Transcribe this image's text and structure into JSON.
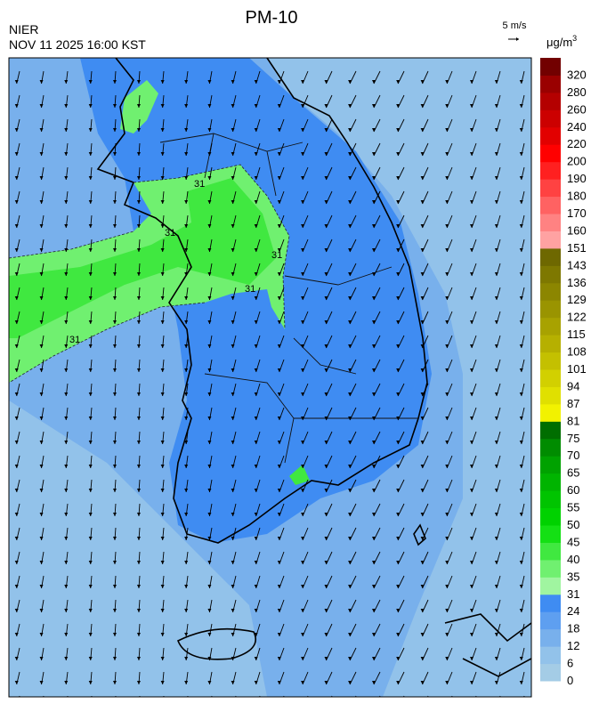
{
  "header": {
    "title": "PM-10",
    "source": "NIER",
    "timestamp": "NOV 11 2025 16:00 KST",
    "wind_scale": "5 m/s"
  },
  "legend": {
    "unit": "μg/m",
    "unit_sup": "3",
    "bins": [
      {
        "label": "0",
        "color": "#a4cce6"
      },
      {
        "label": "6",
        "color": "#92c2ea"
      },
      {
        "label": "12",
        "color": "#78b0ec"
      },
      {
        "label": "18",
        "color": "#5e9ff0"
      },
      {
        "label": "24",
        "color": "#3f8cf2"
      },
      {
        "label": "31",
        "color": "#a0f5a0"
      },
      {
        "label": "35",
        "color": "#70f070"
      },
      {
        "label": "40",
        "color": "#40e840"
      },
      {
        "label": "45",
        "color": "#14e014"
      },
      {
        "label": "50",
        "color": "#00d200"
      },
      {
        "label": "55",
        "color": "#00c400"
      },
      {
        "label": "60",
        "color": "#00b400"
      },
      {
        "label": "65",
        "color": "#00a200"
      },
      {
        "label": "70",
        "color": "#008c00"
      },
      {
        "label": "75",
        "color": "#006e00"
      },
      {
        "label": "81",
        "color": "#f2f200"
      },
      {
        "label": "87",
        "color": "#e0e000"
      },
      {
        "label": "94",
        "color": "#d2d000"
      },
      {
        "label": "101",
        "color": "#c4c000"
      },
      {
        "label": "108",
        "color": "#b6b000"
      },
      {
        "label": "115",
        "color": "#a8a200"
      },
      {
        "label": "122",
        "color": "#9a9400"
      },
      {
        "label": "129",
        "color": "#8c8600"
      },
      {
        "label": "136",
        "color": "#7e7800"
      },
      {
        "label": "143",
        "color": "#6e6800"
      },
      {
        "label": "151",
        "color": "#ffa2a2"
      },
      {
        "label": "160",
        "color": "#ff8282"
      },
      {
        "label": "170",
        "color": "#ff6262"
      },
      {
        "label": "180",
        "color": "#ff4242"
      },
      {
        "label": "190",
        "color": "#ff2020"
      },
      {
        "label": "200",
        "color": "#ff0000"
      },
      {
        "label": "220",
        "color": "#e20000"
      },
      {
        "label": "240",
        "color": "#cc0000"
      },
      {
        "label": "260",
        "color": "#b40000"
      },
      {
        "label": "280",
        "color": "#9a0000"
      },
      {
        "label": "320",
        "color": "#720000"
      }
    ]
  },
  "contour_labels": [
    "31",
    "31",
    "31",
    "31",
    "31"
  ]
}
